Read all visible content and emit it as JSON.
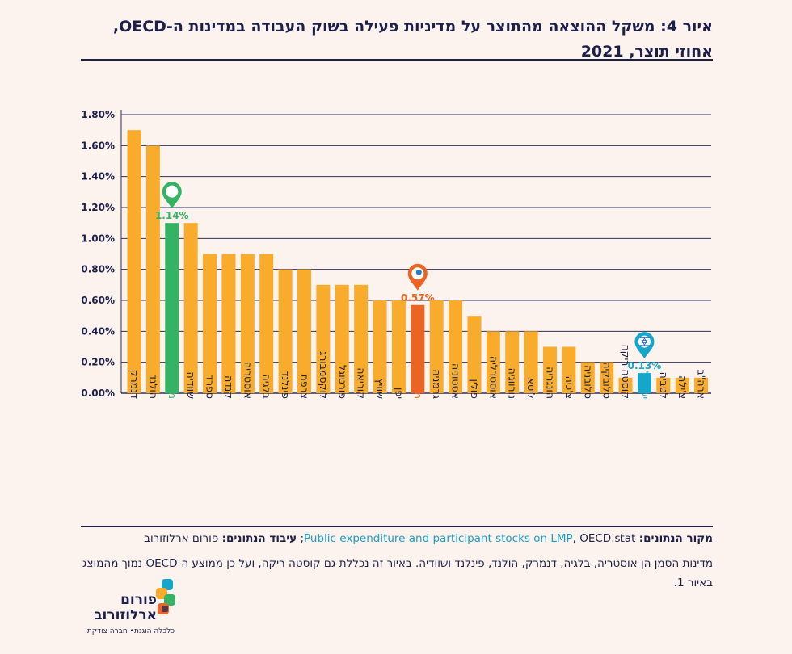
{
  "title": "איור 4: משקל ההוצאה מהתוצר על מדיניות פעילה בשוק העבודה במדינות ה-OECD, אחוזי תוצר, 2021",
  "colors": {
    "bar": "#f9ac2c",
    "highlight_green": "#34b364",
    "highlight_orange": "#ec6424",
    "highlight_blue": "#14a7c9",
    "axis": "#1b1f4a",
    "grid": "#2b2f5a"
  },
  "chart_data": {
    "type": "bar",
    "title": "",
    "xlabel": "",
    "ylabel": "",
    "ylim": [
      0,
      0.018
    ],
    "y_ticks": [
      "0.00%",
      "0.20%",
      "0.40%",
      "0.60%",
      "0.80%",
      "1.00%",
      "1.20%",
      "1.40%",
      "1.60%",
      "1.80%"
    ],
    "grid": true,
    "categories": [
      "דנמרק",
      "הולנד",
      "ממוצע מדינות הסמן",
      "שוודיה",
      "ספרד",
      "קנדה",
      "אוסטריה",
      "בלגיה",
      "פינלנד",
      "צרפת",
      "לוקסמבורג",
      "פורטוגל",
      "קוריאה",
      "שוויץ",
      "יפן",
      "ממוצע ה-OECD",
      "גרמניה",
      "אסטוניה",
      "פולין",
      "אוסטרליה",
      "נורווגיה",
      "ליטא",
      "הונגריה",
      "צ'כיה",
      "סלובניה",
      "סלובקיה",
      "קוסטה ריקה",
      "ישראל",
      "לטביה",
      "צ'ילה",
      "ארה\"ב"
    ],
    "values": [
      0.017,
      0.016,
      0.011,
      0.011,
      0.009,
      0.009,
      0.009,
      0.009,
      0.008,
      0.008,
      0.007,
      0.007,
      0.007,
      0.006,
      0.006,
      0.0057,
      0.006,
      0.006,
      0.005,
      0.004,
      0.004,
      0.004,
      0.003,
      0.003,
      0.002,
      0.002,
      0.001,
      0.0013,
      0.001,
      0.001,
      0.001
    ],
    "highlights": [
      {
        "category": "ממוצע מדינות הסמן",
        "label": "1.14%",
        "color": "green",
        "marker": "pin-icon"
      },
      {
        "category": "ממוצע ה-OECD",
        "label": "0.57%",
        "color": "orange",
        "marker": "oecd-logo-icon"
      },
      {
        "category": "ישראל",
        "label": "0.13%",
        "color": "blue",
        "marker": "israel-flag-icon"
      }
    ]
  },
  "footer": {
    "source_label": "מקור הנתונים:",
    "source_link": "Public expenditure and participant stocks on LMP",
    "source_rest": ", OECD.stat;",
    "processing_label": "עיבוד הנתונים:",
    "processing_value": "פורום ארלוזורוב",
    "note": "מדינות הסמן הן אוסטריה, בלגיה, דנמרק, הולנד, פינלנד ושוודיה. באיור זה נכללת גם קוסטה ריקה, ועל כן ממוצע ה-OECD נמוך מהמוצג באיור 1."
  },
  "logo": {
    "name": "פורום ארלוזורוב",
    "tagline": "כלכלה הוגנת• חברה צודקת"
  }
}
